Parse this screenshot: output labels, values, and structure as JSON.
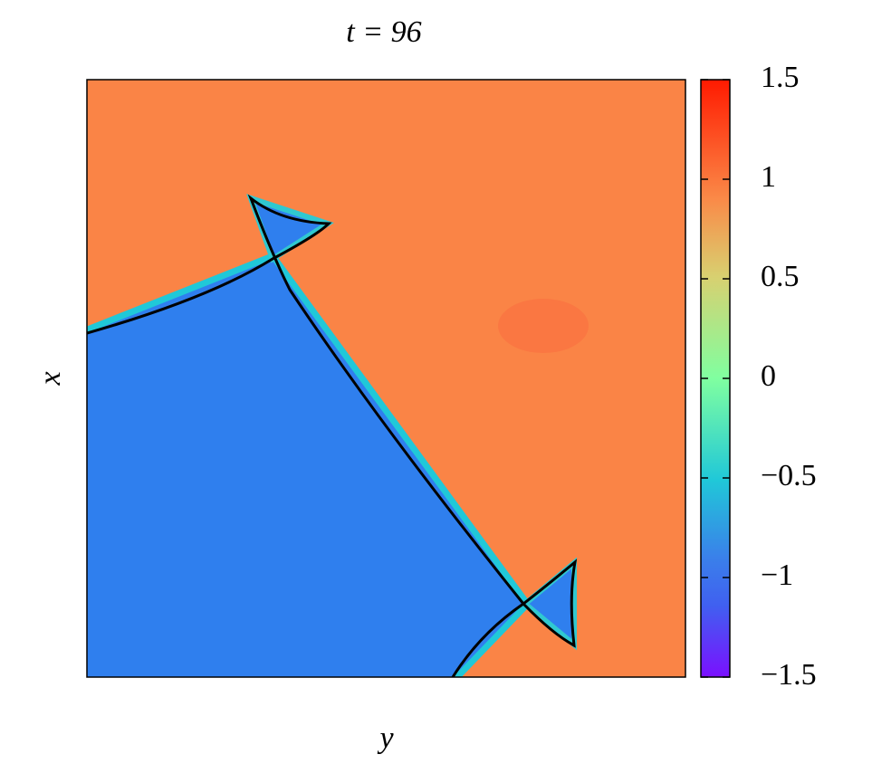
{
  "chart_data": {
    "type": "heatmap",
    "title": "t = 96",
    "xlabel": "y",
    "ylabel": "x",
    "colorbar": {
      "clim": [
        -1.5,
        1.5
      ],
      "ticks": [
        {
          "value": -1.5,
          "label": "−1.5"
        },
        {
          "value": -1,
          "label": "−1"
        },
        {
          "value": -0.5,
          "label": "−0.5"
        },
        0,
        0.5,
        1,
        1.5
      ]
    }
  }
}
